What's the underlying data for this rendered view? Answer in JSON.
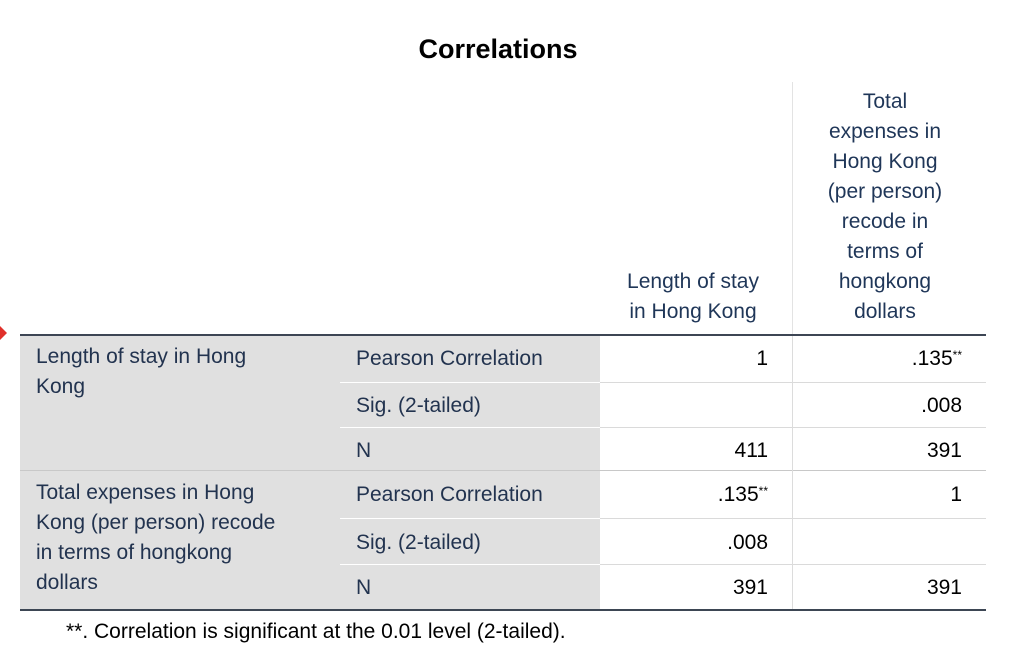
{
  "table": {
    "title": "Correlations",
    "col_headers": [
      "Length of stay in Hong Kong",
      "Total expenses in Hong Kong (per person) recode in terms of hongkong dollars"
    ],
    "col_header_lines": [
      [
        "Length of stay",
        "in Hong Kong"
      ],
      [
        "Total",
        "expenses in",
        "Hong Kong",
        "(per person)",
        "recode in",
        "terms of",
        "hongkong",
        "dollars"
      ]
    ],
    "row_groups": [
      {
        "label_lines": [
          "Length of stay in Hong",
          "Kong"
        ],
        "rows": [
          {
            "stat": "Pearson Correlation",
            "c1": "1",
            "c1_sup": "",
            "c2": ".135",
            "c2_sup": "**"
          },
          {
            "stat": "Sig. (2-tailed)",
            "c1": "",
            "c1_sup": "",
            "c2": ".008",
            "c2_sup": ""
          },
          {
            "stat": "N",
            "c1": "411",
            "c1_sup": "",
            "c2": "391",
            "c2_sup": ""
          }
        ]
      },
      {
        "label_lines": [
          "Total expenses in Hong",
          "Kong (per person) recode",
          "in terms of hongkong",
          "dollars"
        ],
        "rows": [
          {
            "stat": "Pearson Correlation",
            "c1": ".135",
            "c1_sup": "**",
            "c2": "1",
            "c2_sup": ""
          },
          {
            "stat": "Sig. (2-tailed)",
            "c1": ".008",
            "c1_sup": "",
            "c2": "",
            "c2_sup": ""
          },
          {
            "stat": "N",
            "c1": "391",
            "c1_sup": "",
            "c2": "391",
            "c2_sup": ""
          }
        ]
      }
    ],
    "footnote": "**. Correlation is significant at the 0.01 level (2-tailed)."
  },
  "colors": {
    "header_text": "#1f3658",
    "row_label_bg": "#e0e0e0",
    "border_dark": "#3d4654",
    "marker": "#e0302a"
  }
}
